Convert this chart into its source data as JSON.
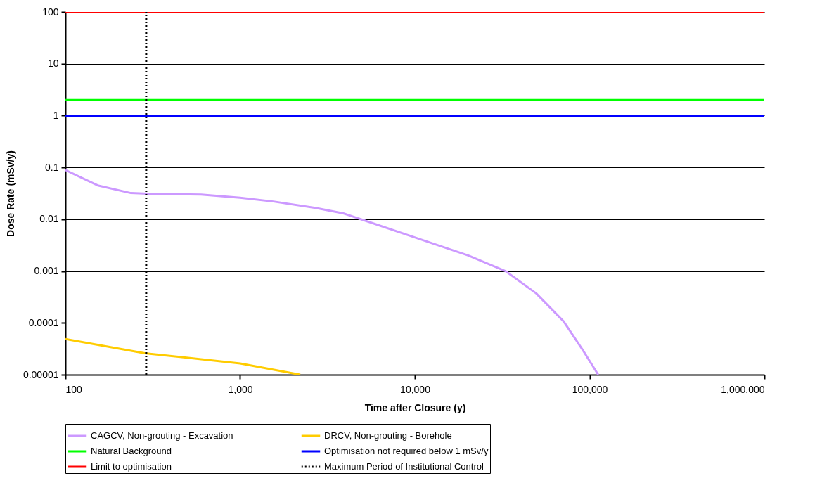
{
  "chart_data": {
    "type": "line",
    "xlabel": "Time after Closure (y)",
    "ylabel": "Dose Rate (mSv/y)",
    "log": "xy",
    "grid": "y",
    "legend": "bottom",
    "marker": "none",
    "xlim": [
      100,
      1000000
    ],
    "ylim": [
      1e-05,
      100
    ],
    "xticks": [
      100,
      {
        "value": 1000,
        "label": "1,000"
      },
      {
        "value": 10000,
        "label": "10,000"
      },
      {
        "value": 100000,
        "label": "100,000"
      },
      {
        "value": 1000000,
        "label": "1,000,000"
      }
    ],
    "yticks": [
      {
        "value": 1e-05,
        "label": "0.00001"
      },
      0.0001,
      0.001,
      0.01,
      0.1,
      1,
      10,
      100
    ],
    "series": [
      {
        "name": "CAGCV, Non-grouting - Excavation",
        "color": "#cc99ff",
        "type": "line",
        "line_style": "solid",
        "x": [
          100,
          153,
          237,
          313,
          598,
          1000,
          1550,
          2700,
          3900,
          5000,
          9900,
          20200,
          33000,
          49500,
          71000,
          91500,
          112000
        ],
        "values": [
          0.089,
          0.045,
          0.032,
          0.031,
          0.03,
          0.026,
          0.022,
          0.0165,
          0.013,
          0.0098,
          0.0045,
          0.002,
          0.001,
          0.00037,
          0.000107,
          2.97e-05,
          1e-05
        ]
      },
      {
        "name": "DRCV, Non-grouting - Borehole",
        "color": "#ffcc00",
        "type": "line",
        "line_style": "solid",
        "x": [
          100,
          285,
          1000,
          2210
        ],
        "values": [
          4.9e-05,
          2.6e-05,
          1.65e-05,
          1e-05
        ]
      },
      {
        "name": "Natural Background",
        "color": "#00ff00",
        "type": "line",
        "line_style": "solid",
        "x": [
          100,
          1000000
        ],
        "values": [
          2,
          2
        ]
      },
      {
        "name": "Optimisation not required below 1 mSv/y",
        "color": "#0000ff",
        "type": "line",
        "line_style": "solid",
        "x": [
          100,
          1000000
        ],
        "values": [
          1,
          1
        ]
      },
      {
        "name": "Limit to optimisation",
        "color": "#ff0000",
        "type": "line",
        "line_style": "solid",
        "x": [
          100,
          1000000
        ],
        "values": [
          100,
          100
        ]
      },
      {
        "name": "Maximum Period of Institutional Control",
        "color": "#000000",
        "type": "line",
        "line_style": "dotted",
        "x": [
          290,
          290
        ],
        "values": [
          1e-05,
          100
        ]
      }
    ]
  }
}
